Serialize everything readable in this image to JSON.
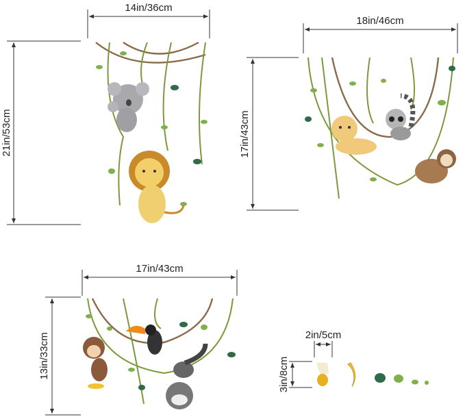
{
  "decal_sets": [
    {
      "name": "koala-lion-set",
      "width_label": "14in/36cm",
      "height_label": "21in/53cm"
    },
    {
      "name": "leopard-lemur-sloth-set",
      "width_label": "18in/46cm",
      "height_label": "17in/43cm"
    },
    {
      "name": "monkey-toucan-cat-set",
      "width_label": "17in/43cm",
      "height_label": "13in/33cm"
    },
    {
      "name": "banana-leaf-set",
      "width_label": "2in/5cm",
      "height_label": "3in/8cm"
    }
  ],
  "colors": {
    "vine_green": "#7a9a3a",
    "vine_brown": "#8a6a4a",
    "leaf_light": "#7fb04a",
    "leaf_dark": "#2f6a4a",
    "banana": "#f2c230"
  }
}
